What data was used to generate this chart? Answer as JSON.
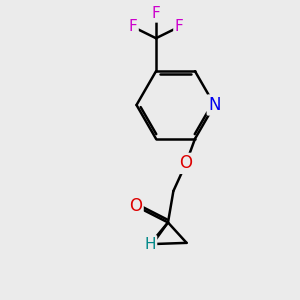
{
  "bg_color": "#ebebeb",
  "bond_color": "#000000",
  "bond_width": 1.8,
  "atom_colors": {
    "F": "#cc00cc",
    "N": "#0000ee",
    "O": "#dd0000",
    "H": "#008888",
    "C": "#000000"
  },
  "figsize": [
    3.0,
    3.0
  ],
  "dpi": 100
}
